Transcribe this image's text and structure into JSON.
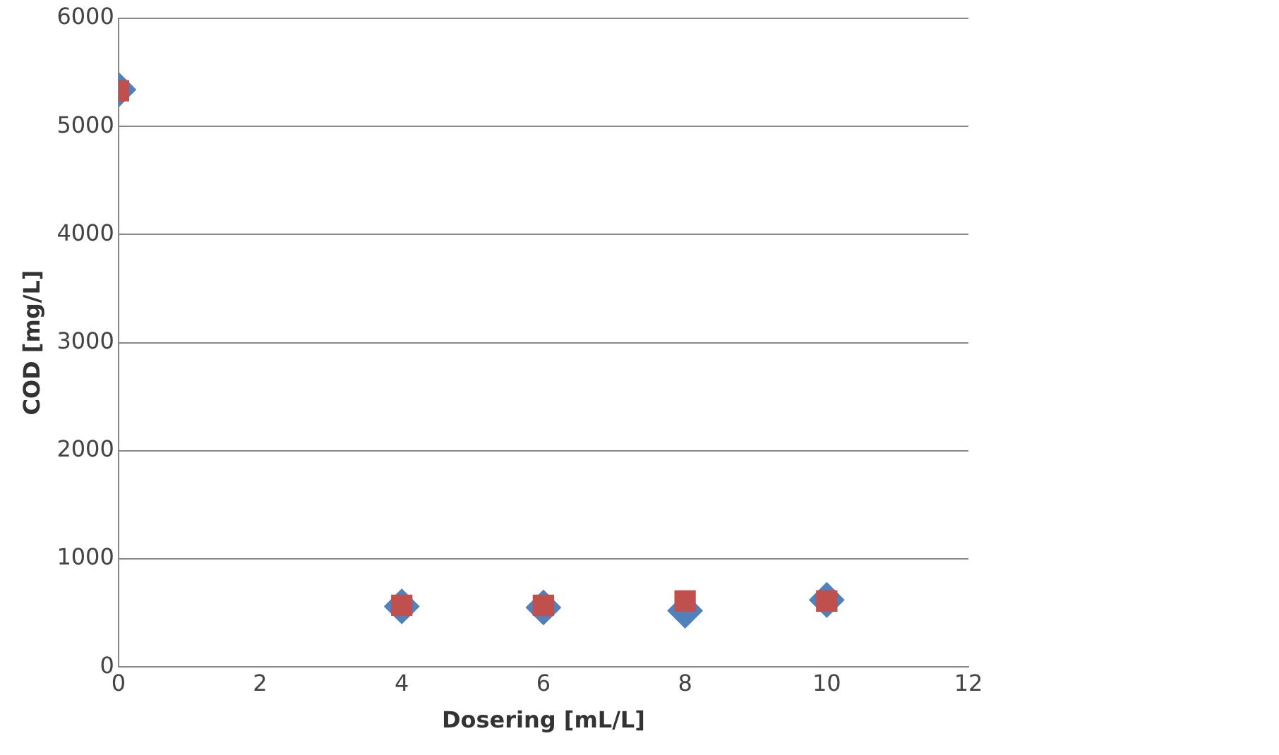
{
  "chart_data": {
    "type": "scatter",
    "xlabel": "Dosering [mL/L]",
    "ylabel": "COD [mg/L]",
    "xlim": [
      0,
      12
    ],
    "xticks": [
      0,
      2,
      4,
      6,
      8,
      10,
      12
    ],
    "ylim": [
      0,
      6000
    ],
    "yticks": [
      0,
      1000,
      2000,
      3000,
      4000,
      5000,
      6000
    ],
    "grid": "y",
    "series": [
      {
        "color": "#4f81bd",
        "marker": "diamond",
        "x": [
          0,
          4,
          6,
          8,
          10
        ],
        "values": [
          5340,
          560,
          550,
          520,
          620
        ]
      },
      {
        "color": "#c0504d",
        "marker": "square",
        "x": [
          0,
          4,
          6,
          8,
          10
        ],
        "values": [
          5330,
          570,
          570,
          610,
          610
        ]
      }
    ]
  }
}
